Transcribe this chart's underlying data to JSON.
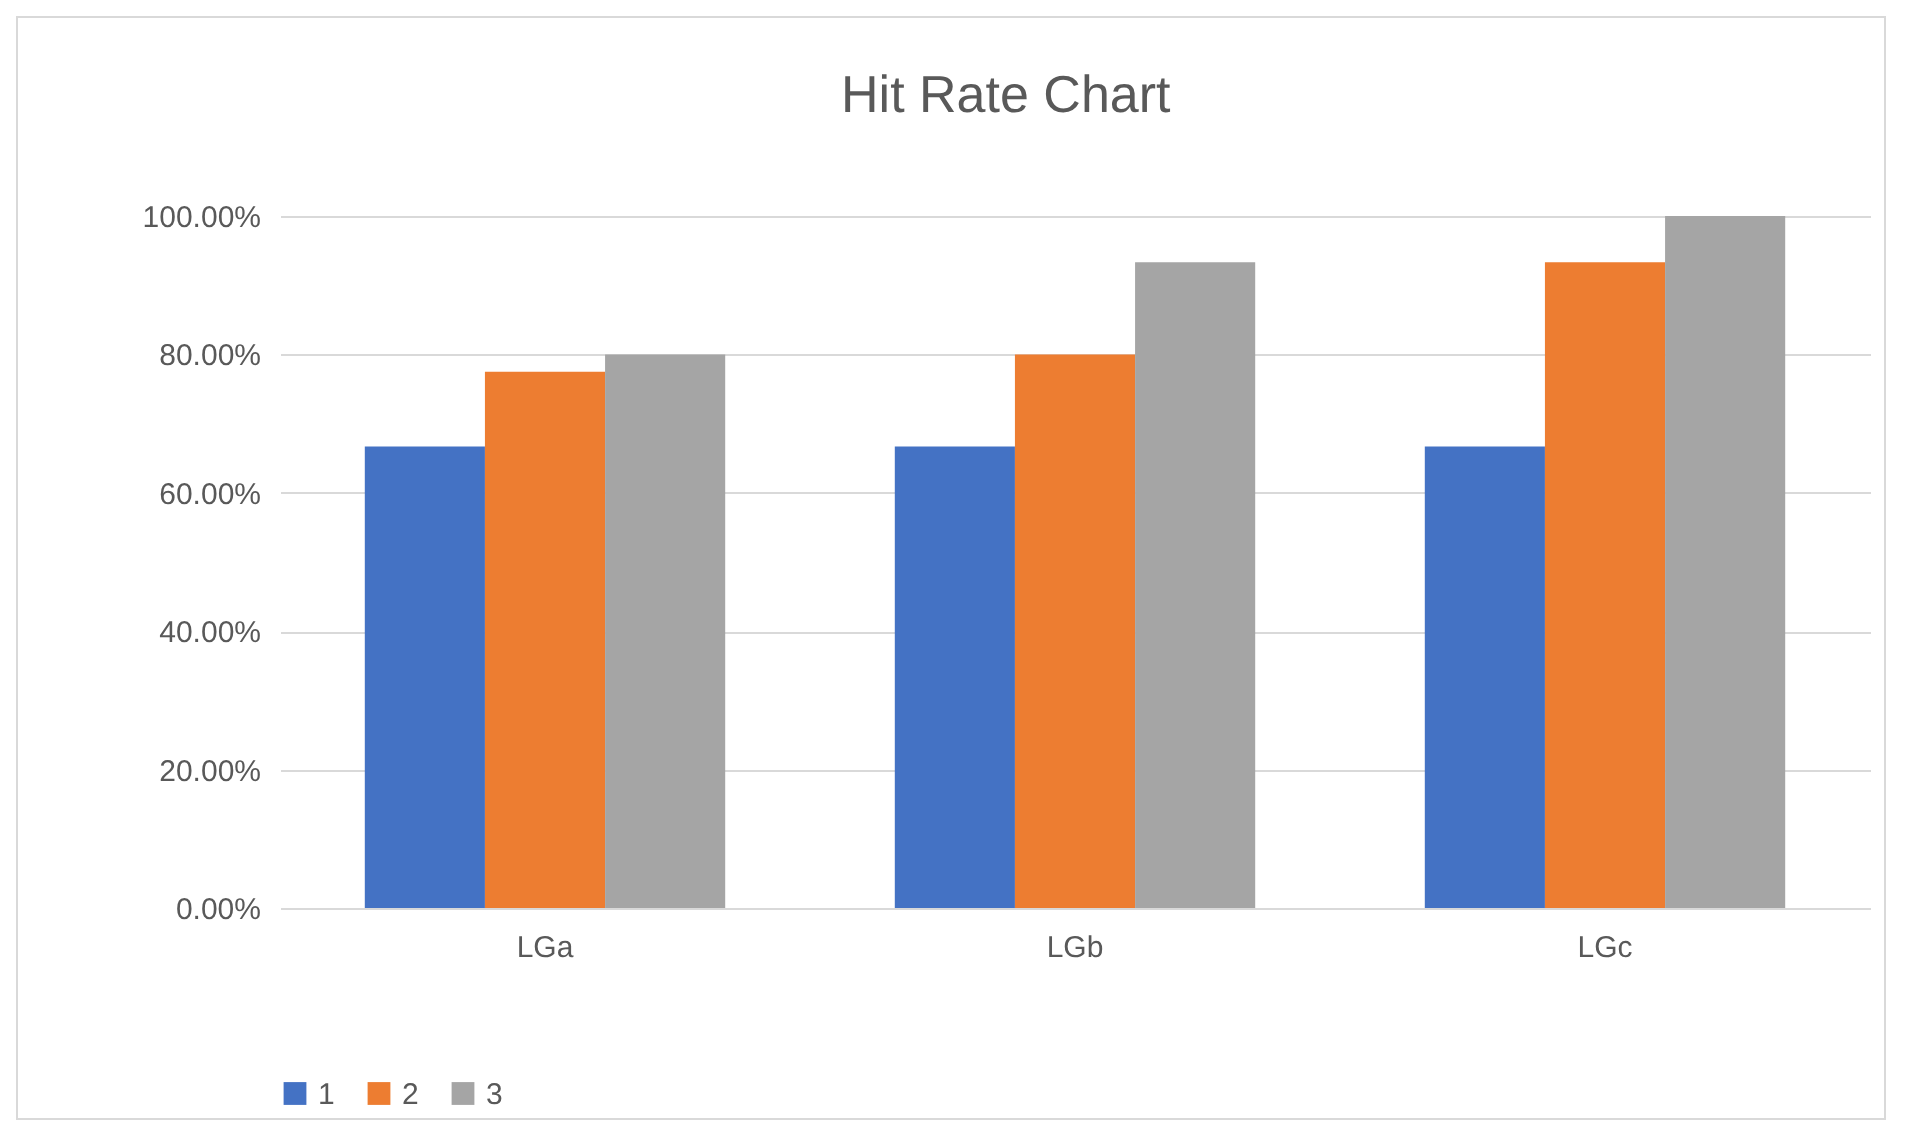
{
  "chart_data": {
    "type": "bar",
    "title": "Hit Rate Chart",
    "categories": [
      "LGa",
      "LGb",
      "LGc"
    ],
    "series": [
      {
        "name": "1",
        "color": "#4472c4",
        "values": [
          66.7,
          66.7,
          66.7
        ]
      },
      {
        "name": "2",
        "color": "#ed7d31",
        "values": [
          77.5,
          80,
          93.3
        ]
      },
      {
        "name": "3",
        "color": "#a5a5a5",
        "values": [
          80,
          93.3,
          100
        ]
      }
    ],
    "ylim": [
      0,
      100
    ],
    "yticks": [
      {
        "value": 0,
        "label": "0.00%"
      },
      {
        "value": 20,
        "label": "20.00%"
      },
      {
        "value": 40,
        "label": "40.00%"
      },
      {
        "value": 60,
        "label": "60.00%"
      },
      {
        "value": 80,
        "label": "80.00%"
      },
      {
        "value": 100,
        "label": "100.00%"
      }
    ],
    "grid": "y",
    "legend": "bottom"
  }
}
